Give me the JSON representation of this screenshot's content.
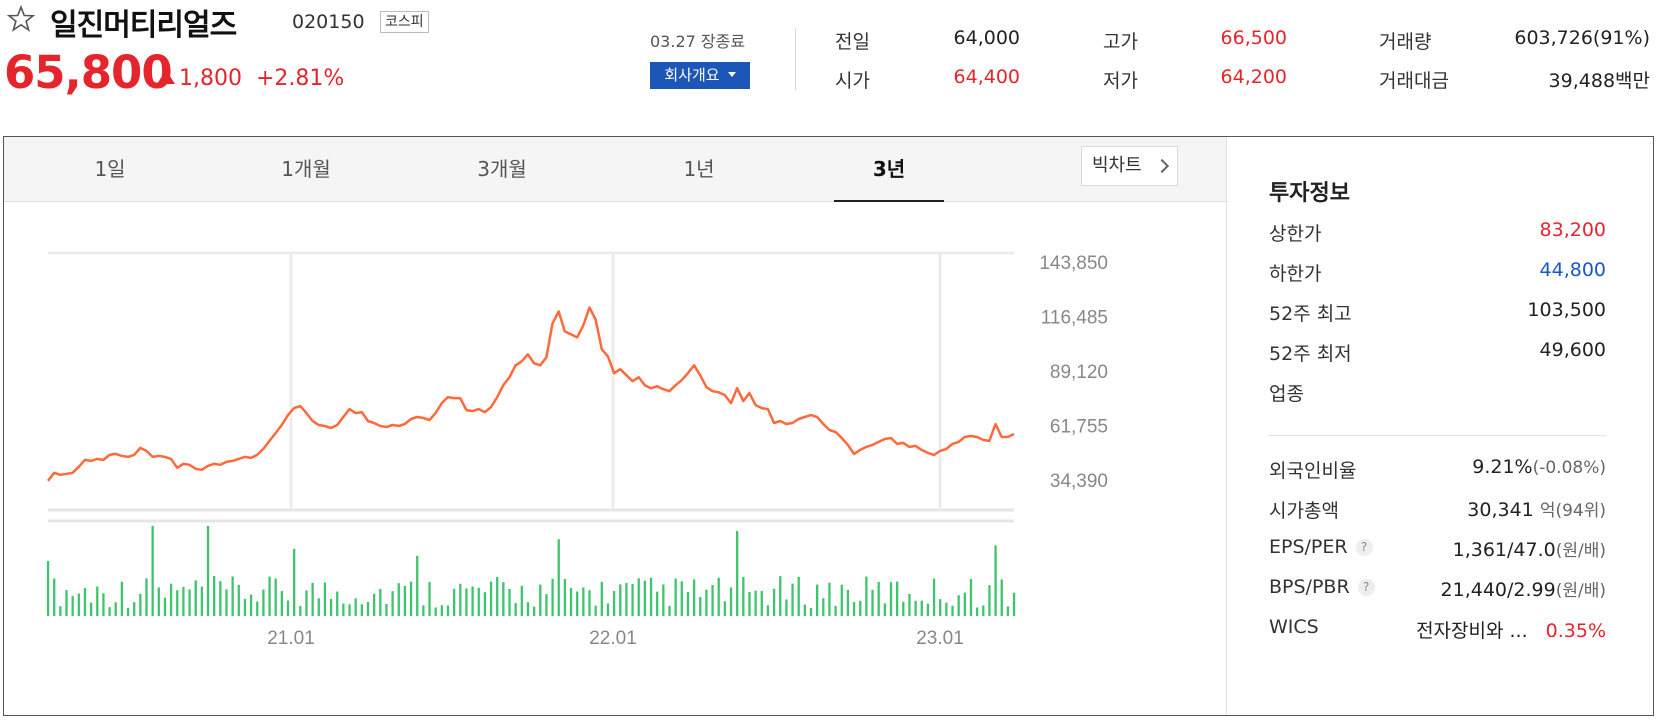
{
  "header": {
    "stock_name": "일진머티리얼즈",
    "stock_code": "020150",
    "market": "코스피",
    "price": "65,800",
    "change": "1,800",
    "change_rate": "+2.81%",
    "close_info": "03.27 장종료",
    "company_button": "회사개요",
    "quotes": {
      "prev_label": "전일",
      "prev": "64,000",
      "open_label": "시가",
      "open": "64,400",
      "high_label": "고가",
      "high": "66,500",
      "low_label": "저가",
      "low": "64,200",
      "volume_label": "거래량",
      "volume": "603,726(91%)",
      "amount_label": "거래대금",
      "amount": "39,488",
      "amount_unit": "백만"
    }
  },
  "tabs": [
    "1일",
    "1개월",
    "3개월",
    "1년",
    "3년"
  ],
  "active_tab": "3년",
  "bigchart_label": "빅차트",
  "chart_data": {
    "type": "line",
    "y_ticks": [
      "143,850",
      "116,485",
      "89,120",
      "61,755",
      "34,390"
    ],
    "y_tick_values": [
      143850,
      116485,
      89120,
      61755,
      34390
    ],
    "x_tick_labels": [
      "21.01",
      "22.01",
      "23.01"
    ],
    "ylim": [
      34390,
      143850
    ],
    "grid": true,
    "line_color": "#ff6a3d",
    "volume_color": "#3ec46d",
    "price_series": [
      34000,
      38000,
      37000,
      37500,
      38000,
      41000,
      44500,
      44000,
      45000,
      44500,
      47000,
      47500,
      46500,
      46000,
      47000,
      50500,
      49000,
      46000,
      46500,
      46000,
      45000,
      40500,
      42500,
      42000,
      40000,
      39500,
      41500,
      42500,
      42000,
      43500,
      44000,
      45000,
      46000,
      45500,
      47000,
      50000,
      54000,
      58000,
      62000,
      67000,
      70500,
      71500,
      68000,
      64000,
      62000,
      61500,
      60500,
      62000,
      66000,
      70000,
      68000,
      68500,
      64000,
      63000,
      61500,
      61000,
      62000,
      61500,
      62500,
      65000,
      66000,
      65500,
      64500,
      68000,
      73000,
      76000,
      75500,
      75500,
      69500,
      69000,
      70000,
      68500,
      71000,
      76000,
      82000,
      86000,
      92000,
      94000,
      97500,
      93000,
      92000,
      96000,
      113000,
      119000,
      109000,
      107500,
      106000,
      112000,
      121000,
      115000,
      100000,
      96500,
      88000,
      90000,
      87000,
      84000,
      86000,
      82000,
      80500,
      81500,
      80000,
      79000,
      82000,
      84500,
      88000,
      92000,
      87000,
      81000,
      79000,
      78500,
      77000,
      73000,
      80500,
      74000,
      78000,
      72000,
      70500,
      70000,
      63000,
      64000,
      62500,
      63000,
      65000,
      66000,
      67000,
      66000,
      62500,
      59500,
      58500,
      55500,
      52000,
      47500,
      49500,
      51000,
      52000,
      53500,
      55000,
      55500,
      52500,
      53000,
      51000,
      51500,
      49500,
      48000,
      47000,
      49000,
      50000,
      52500,
      53500,
      56000,
      56500,
      56000,
      54500,
      54000,
      62500,
      56000,
      56000,
      57500
    ]
  },
  "invest": {
    "title": "투자정보",
    "rows": [
      {
        "label": "상한가",
        "value": "83,200",
        "color": "red"
      },
      {
        "label": "하한가",
        "value": "44,800",
        "color": "blue"
      },
      {
        "label": "52주 최고",
        "value": "103,500",
        "color": ""
      },
      {
        "label": "52주 최저",
        "value": "49,600",
        "color": ""
      },
      {
        "label": "업종",
        "value": "",
        "color": ""
      }
    ],
    "foreign_label": "외국인비율",
    "foreign": "9.21%",
    "foreign_change": "(-0.08%)",
    "mcap_label": "시가총액",
    "mcap": "30,341",
    "mcap_unit": "억",
    "mcap_rank": "(94위)",
    "eps_label": "EPS/PER",
    "eps": "1,361/47.0",
    "eps_unit": "(원/배)",
    "bps_label": "BPS/PBR",
    "bps": "21,440/2.99",
    "bps_unit": "(원/배)",
    "qmark": "?",
    "wics_label": "WICS",
    "wics": "전자장비와 ...",
    "wics_pct": "0.35%"
  }
}
